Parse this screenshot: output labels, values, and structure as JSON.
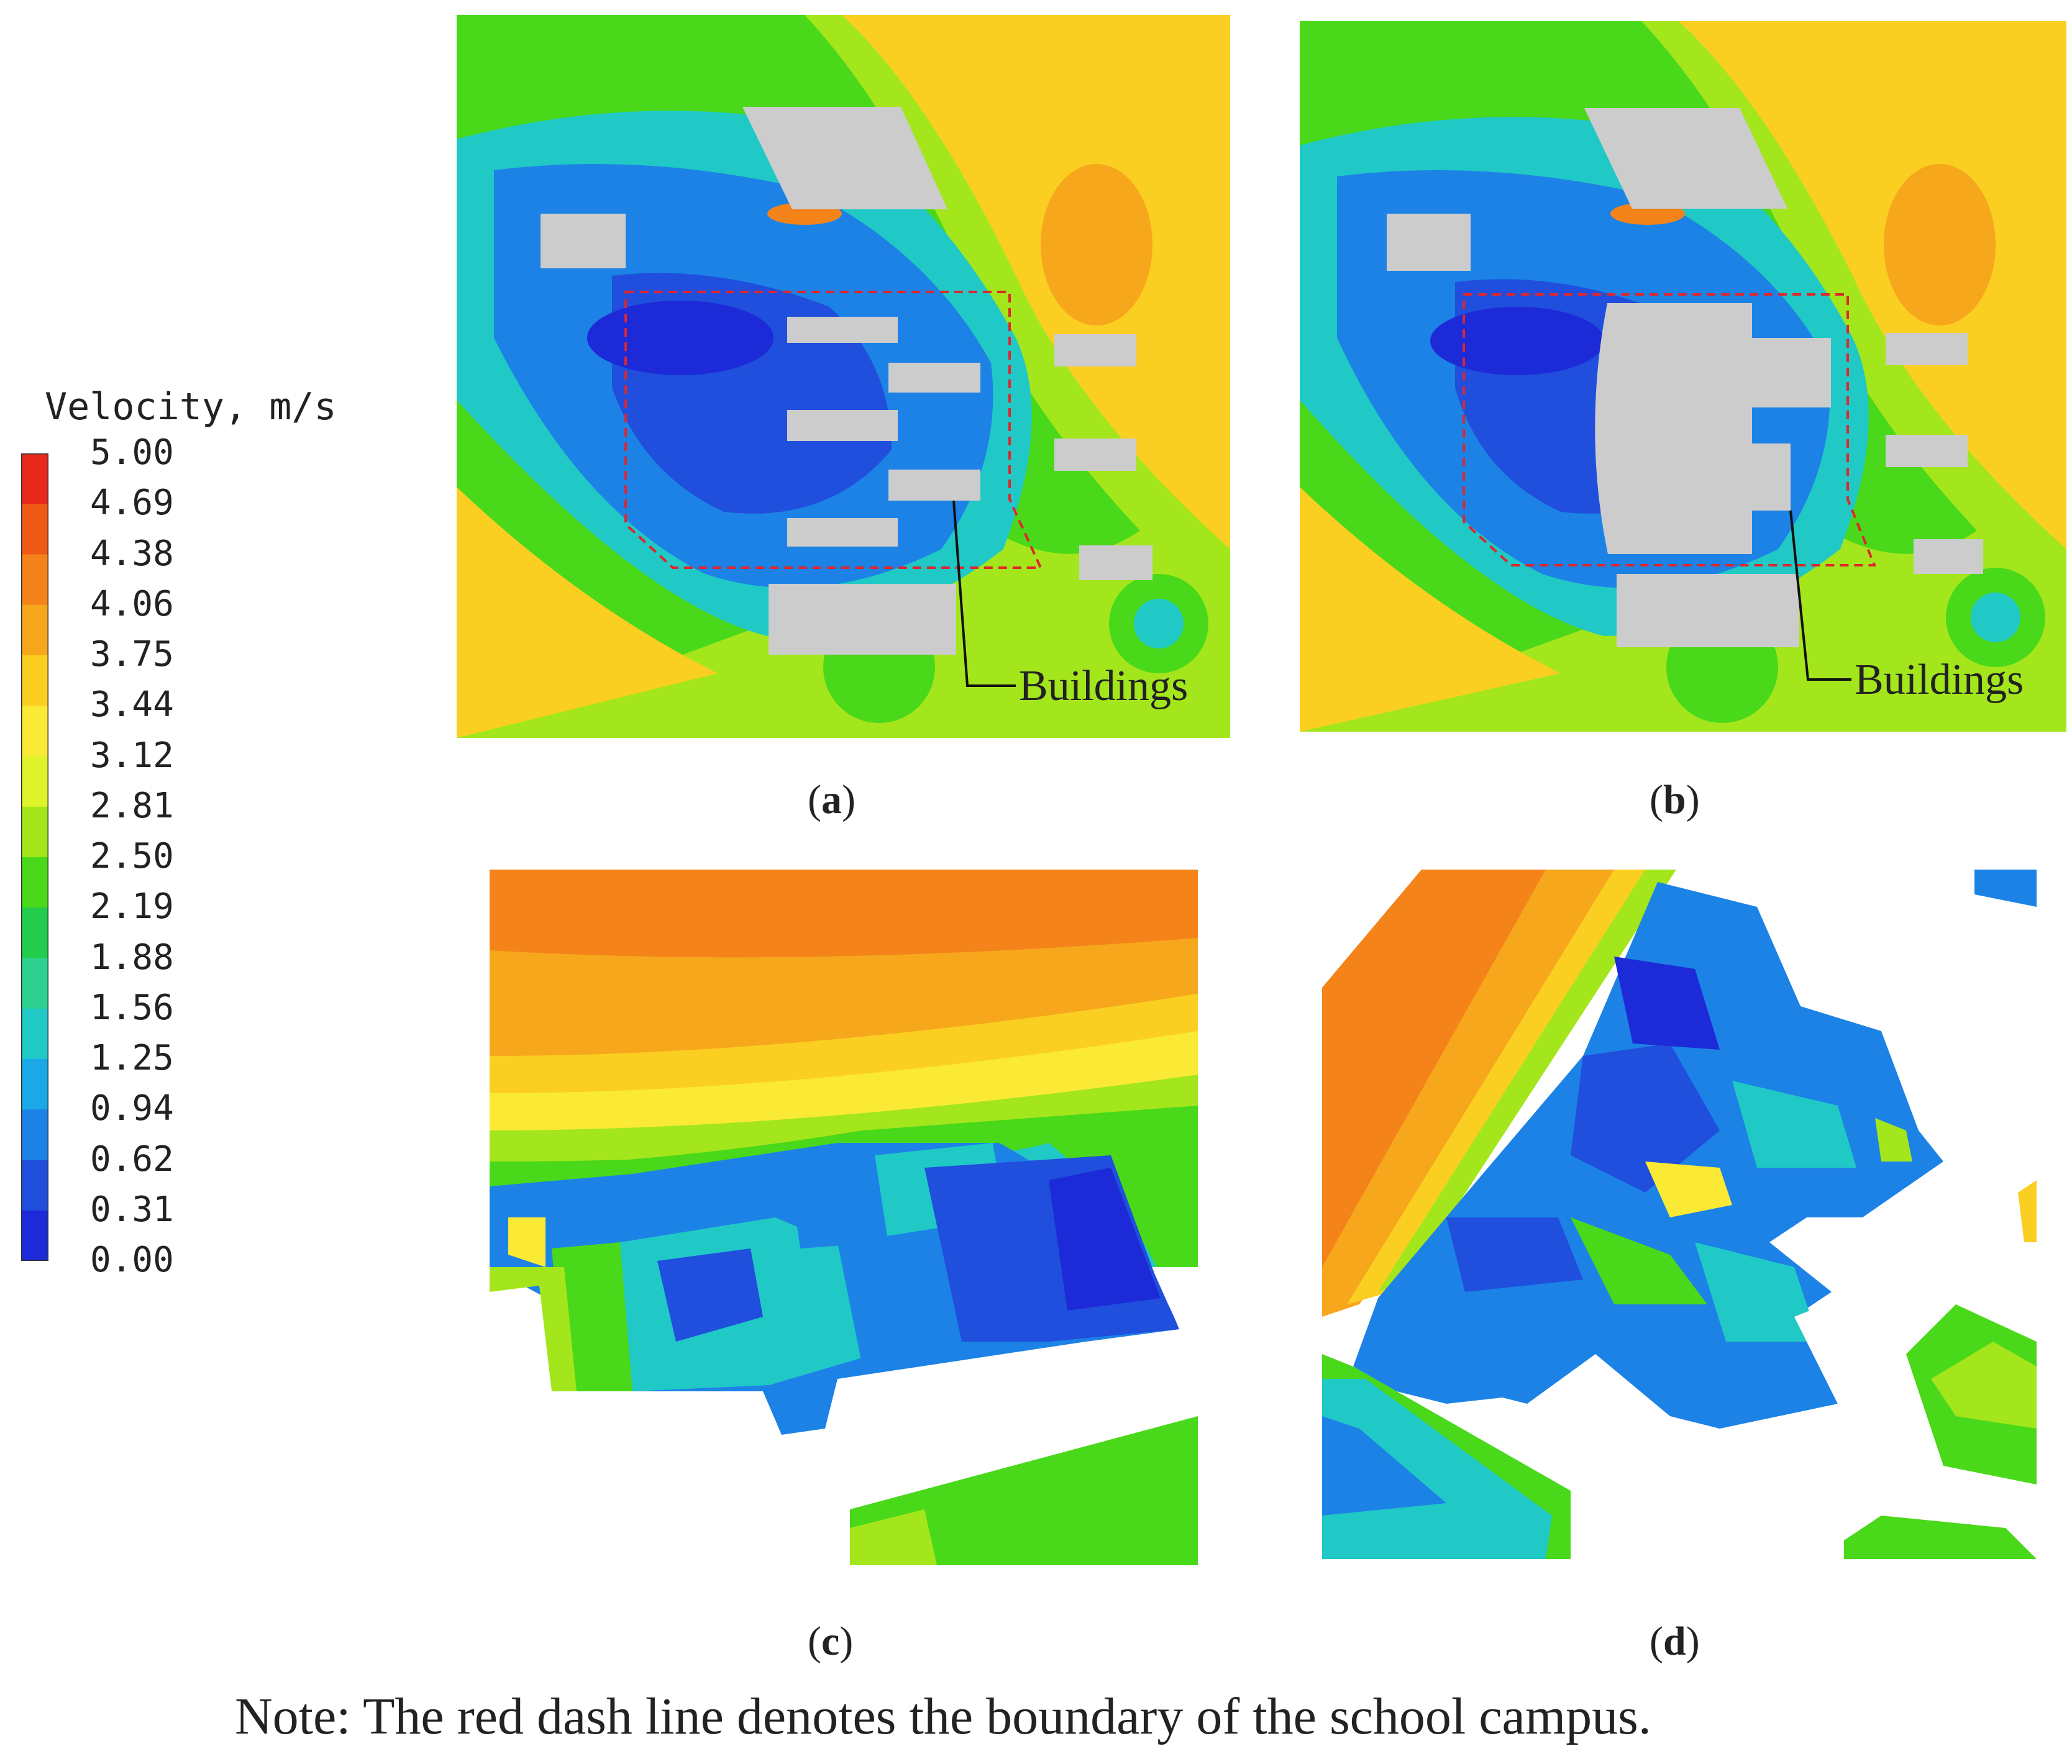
{
  "legend": {
    "title": "Velocity, m/s",
    "ticks": [
      "5.00",
      "4.69",
      "4.38",
      "4.06",
      "3.75",
      "3.44",
      "3.12",
      "2.81",
      "2.50",
      "2.19",
      "1.88",
      "1.56",
      "1.25",
      "0.94",
      "0.62",
      "0.31",
      "0.00"
    ],
    "colors": [
      "#e8281a",
      "#ef5a16",
      "#f4831a",
      "#f7a71c",
      "#fbcf21",
      "#fbea35",
      "#dff32a",
      "#a3e61c",
      "#4ad81a",
      "#22cc4c",
      "#2fd190",
      "#20c8c6",
      "#1aa8e6",
      "#1c82e6",
      "#1f4fdc",
      "#1c2ad8"
    ]
  },
  "panels": {
    "a": {
      "letter": "a",
      "building_label": "Buildings"
    },
    "b": {
      "letter": "b",
      "building_label": "Buildings"
    },
    "c": {
      "letter": "c"
    },
    "d": {
      "letter": "d"
    }
  },
  "colors": {
    "building": "#cccccc",
    "boundary": "#e0262d",
    "high": "#f4831a",
    "mid": "#fbcf21",
    "green": "#4ad81a",
    "cyan": "#20c8c6",
    "blue": "#1c82e6",
    "deep_blue": "#1f3fd8"
  },
  "note": "Note: The red dash line denotes the boundary of the school campus."
}
